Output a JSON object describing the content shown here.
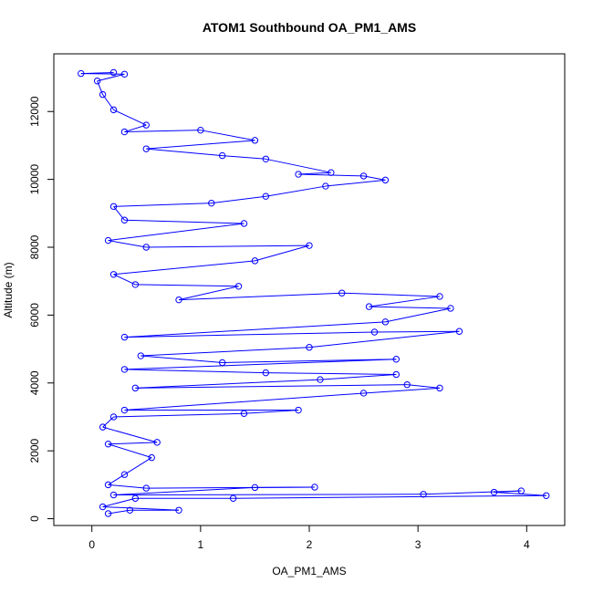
{
  "chart_data": {
    "type": "scatter",
    "title": "ATOM1 Southbound OA_PM1_AMS",
    "xlabel": "OA_PM1_AMS",
    "ylabel": "Altitude (m)",
    "xlim": [
      -0.35,
      4.35
    ],
    "ylim": [
      -200,
      13700
    ],
    "x_ticks": [
      0,
      1,
      2,
      3,
      4
    ],
    "y_ticks": [
      0,
      2000,
      4000,
      6000,
      8000,
      10000,
      12000
    ],
    "grid": false,
    "point_style": "open-circle-connected",
    "color": "#0000ff",
    "series": [
      {
        "points": [
          [
            0.15,
            150
          ],
          [
            0.35,
            250
          ],
          [
            0.8,
            250
          ],
          [
            0.1,
            350
          ],
          [
            0.4,
            600
          ],
          [
            1.3,
            600
          ],
          [
            4.18,
            680
          ],
          [
            3.7,
            780
          ],
          [
            3.95,
            820
          ],
          [
            3.05,
            720
          ],
          [
            0.2,
            700
          ],
          [
            1.5,
            920
          ],
          [
            2.05,
            930
          ],
          [
            0.5,
            900
          ],
          [
            0.15,
            1000
          ],
          [
            0.3,
            1300
          ],
          [
            0.55,
            1800
          ],
          [
            0.15,
            2200
          ],
          [
            0.6,
            2250
          ],
          [
            0.1,
            2700
          ],
          [
            0.2,
            3000
          ],
          [
            1.4,
            3100
          ],
          [
            1.9,
            3200
          ],
          [
            0.3,
            3200
          ],
          [
            2.5,
            3700
          ],
          [
            3.2,
            3850
          ],
          [
            2.9,
            3950
          ],
          [
            0.4,
            3850
          ],
          [
            2.1,
            4100
          ],
          [
            2.8,
            4250
          ],
          [
            1.6,
            4300
          ],
          [
            0.3,
            4400
          ],
          [
            2.8,
            4700
          ],
          [
            1.2,
            4600
          ],
          [
            0.45,
            4800
          ],
          [
            2.0,
            5050
          ],
          [
            3.38,
            5520
          ],
          [
            2.6,
            5500
          ],
          [
            0.3,
            5350
          ],
          [
            2.7,
            5800
          ],
          [
            3.3,
            6200
          ],
          [
            2.55,
            6250
          ],
          [
            3.2,
            6550
          ],
          [
            2.3,
            6650
          ],
          [
            0.8,
            6450
          ],
          [
            1.35,
            6850
          ],
          [
            0.4,
            6900
          ],
          [
            0.2,
            7200
          ],
          [
            1.5,
            7600
          ],
          [
            2.0,
            8050
          ],
          [
            0.5,
            8000
          ],
          [
            0.15,
            8200
          ],
          [
            1.4,
            8700
          ],
          [
            0.3,
            8800
          ],
          [
            0.2,
            9200
          ],
          [
            1.1,
            9300
          ],
          [
            1.6,
            9500
          ],
          [
            2.15,
            9800
          ],
          [
            2.7,
            9980
          ],
          [
            2.5,
            10100
          ],
          [
            1.9,
            10150
          ],
          [
            2.2,
            10200
          ],
          [
            1.6,
            10600
          ],
          [
            1.2,
            10700
          ],
          [
            0.5,
            10900
          ],
          [
            1.5,
            11150
          ],
          [
            1.0,
            11450
          ],
          [
            0.3,
            11400
          ],
          [
            0.5,
            11600
          ],
          [
            0.2,
            12050
          ],
          [
            0.1,
            12500
          ],
          [
            0.05,
            12900
          ],
          [
            0.3,
            13100
          ],
          [
            -0.1,
            13120
          ],
          [
            0.2,
            13150
          ]
        ]
      }
    ]
  }
}
